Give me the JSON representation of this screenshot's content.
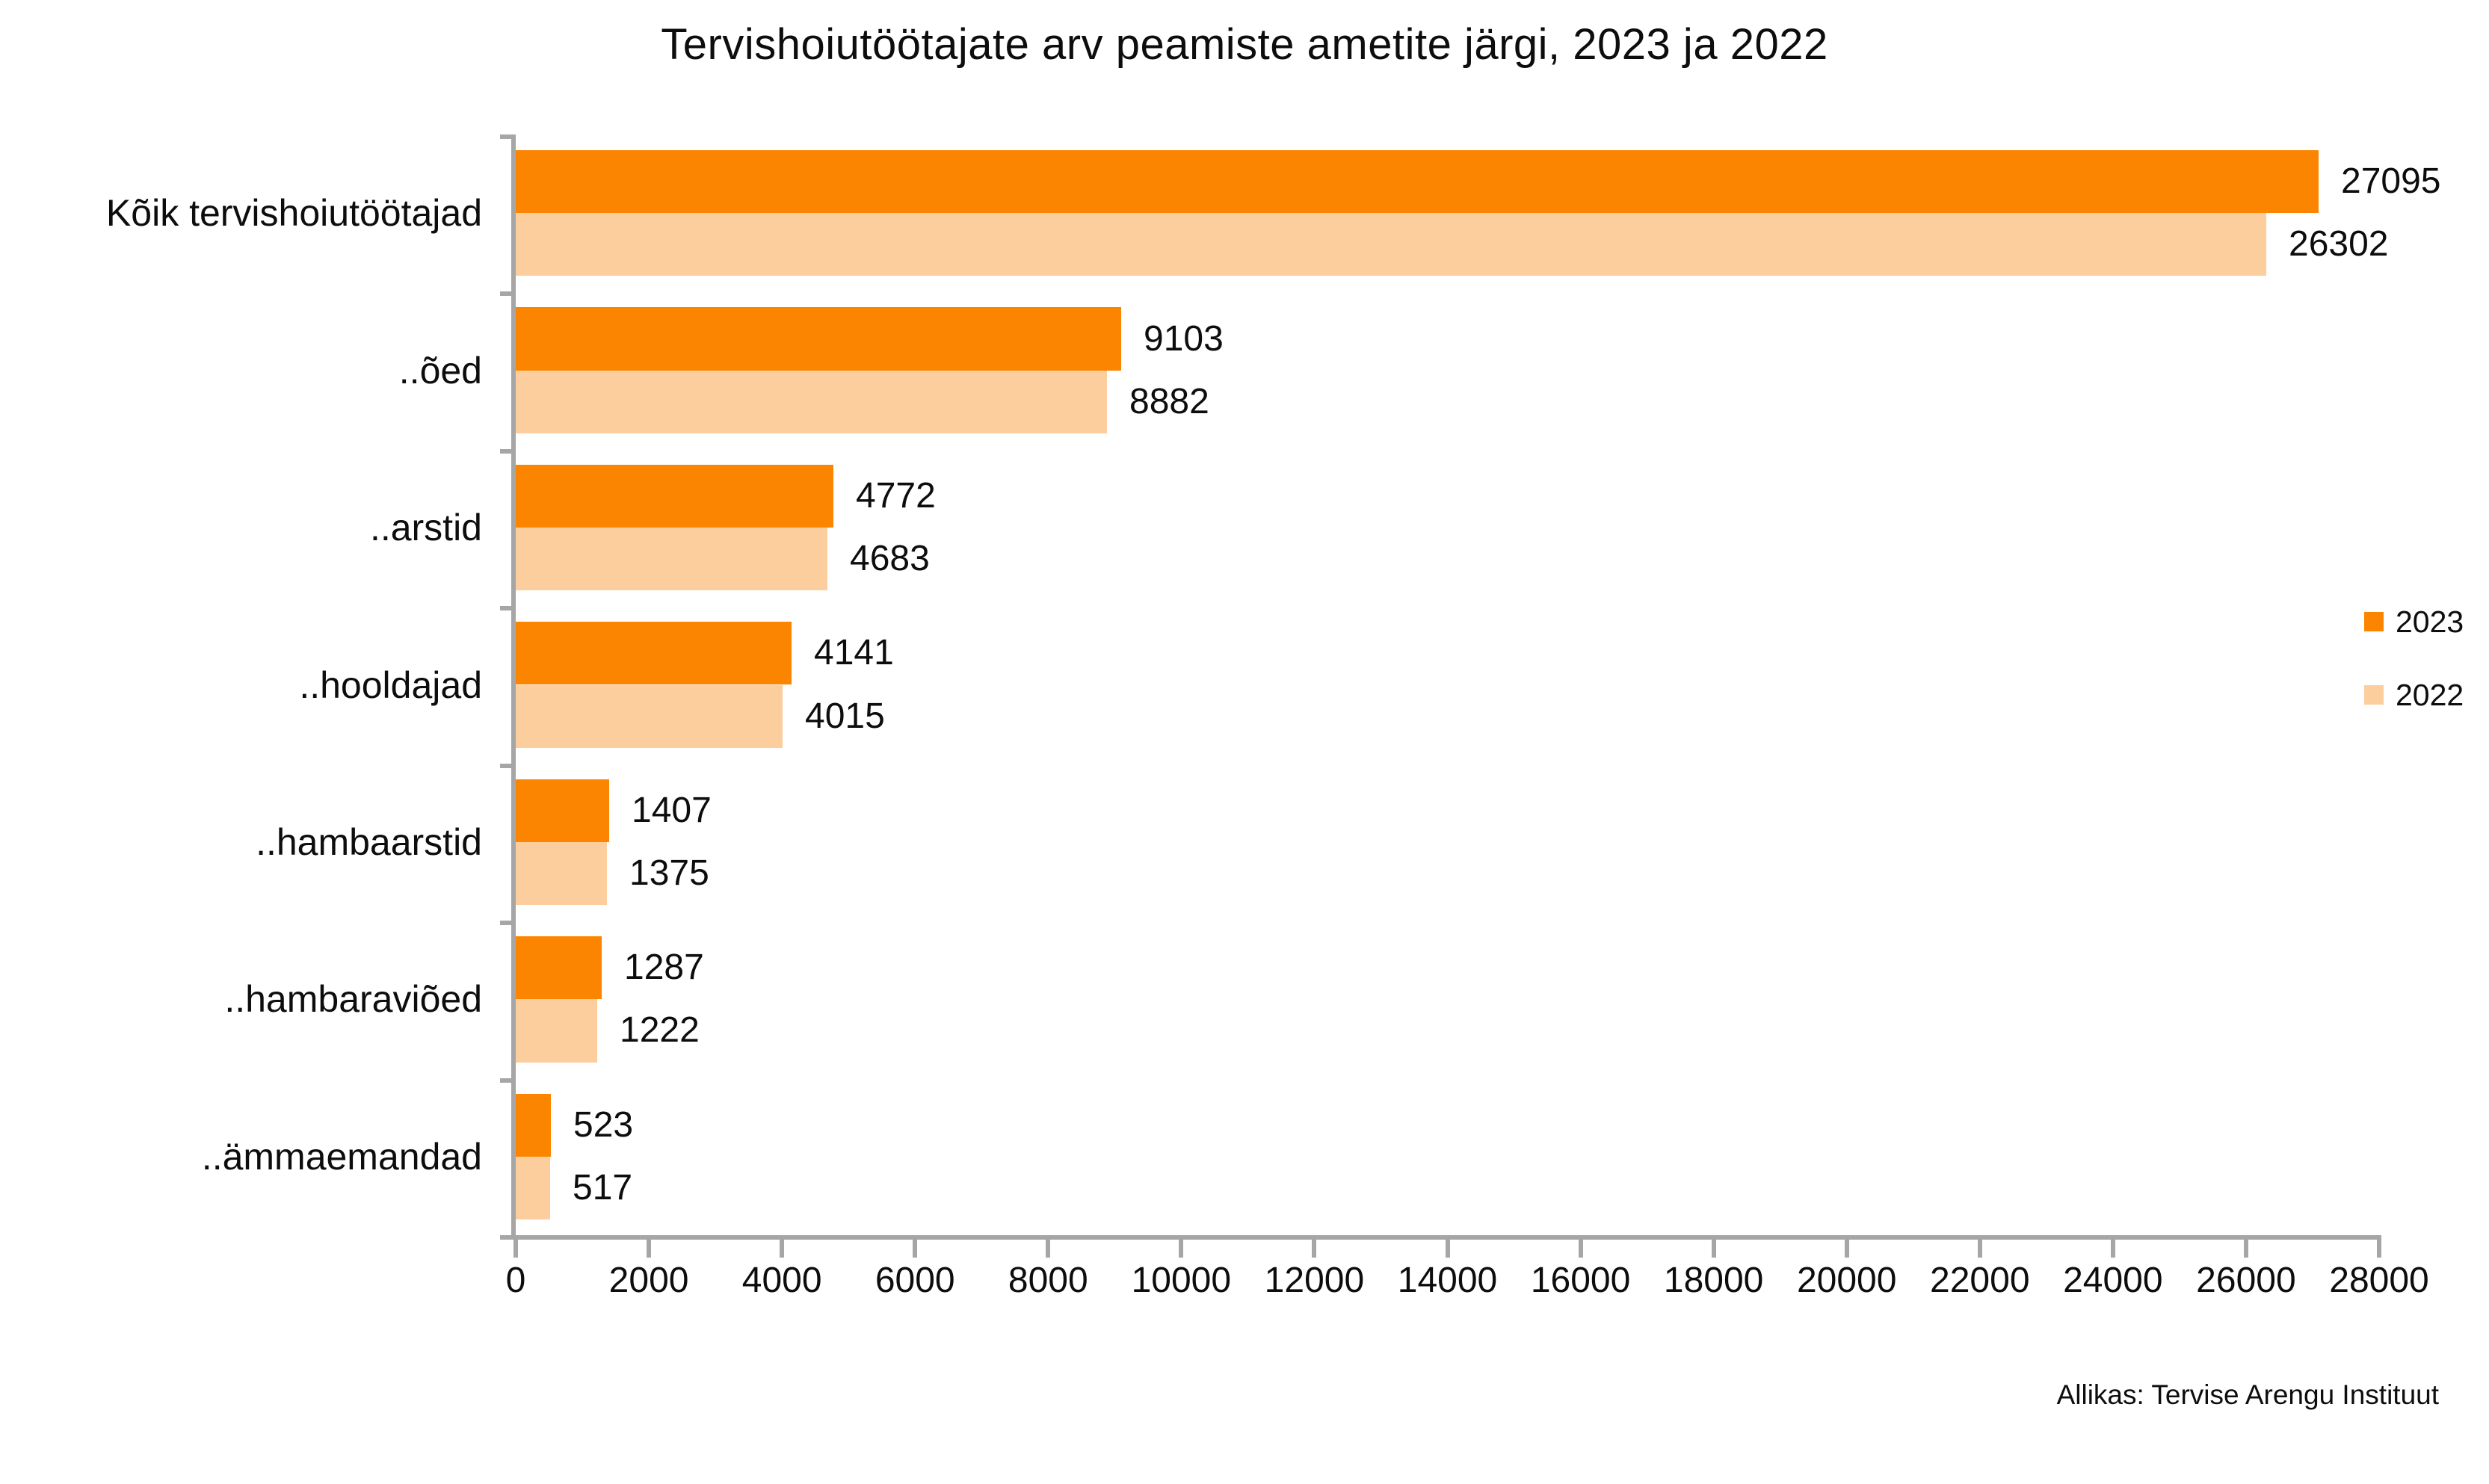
{
  "title": "Tervishoiutöötajate arv peamiste ametite järgi, 2023 ja 2022",
  "source": "Allikas: Tervise Arengu Instituut",
  "colors": {
    "series_2023": "#FB8500",
    "series_2022": "#FCCE9D",
    "axis": "#A6A6A6",
    "text": "#0D0D0D",
    "background": "#FFFFFF"
  },
  "legend": {
    "position": "right",
    "items": [
      {
        "label": "2023",
        "color": "#FB8500"
      },
      {
        "label": "2022",
        "color": "#FCCE9D"
      }
    ]
  },
  "chart_data": {
    "type": "bar",
    "orientation": "horizontal",
    "title": "Tervishoiutöötajate arv peamiste ametite järgi, 2023 ja 2022",
    "categories": [
      "Kõik tervishoiutöötajad",
      "..õed",
      "..arstid",
      "..hooldajad",
      "..hambaarstid",
      "..hambaraviõed",
      "..ämmaemandad"
    ],
    "series": [
      {
        "name": "2023",
        "color": "#FB8500",
        "values": [
          27095,
          9103,
          4772,
          4141,
          1407,
          1287,
          523
        ]
      },
      {
        "name": "2022",
        "color": "#FCCE9D",
        "values": [
          26302,
          8882,
          4683,
          4015,
          1375,
          1222,
          517
        ]
      }
    ],
    "value_labels_shown": true,
    "xlim": [
      0,
      28000
    ],
    "xticks": [
      0,
      2000,
      4000,
      6000,
      8000,
      10000,
      12000,
      14000,
      16000,
      18000,
      20000,
      22000,
      24000,
      26000,
      28000
    ],
    "grid": false,
    "legend_position": "right",
    "source_note": "Allikas: Tervise Arengu Instituut"
  }
}
